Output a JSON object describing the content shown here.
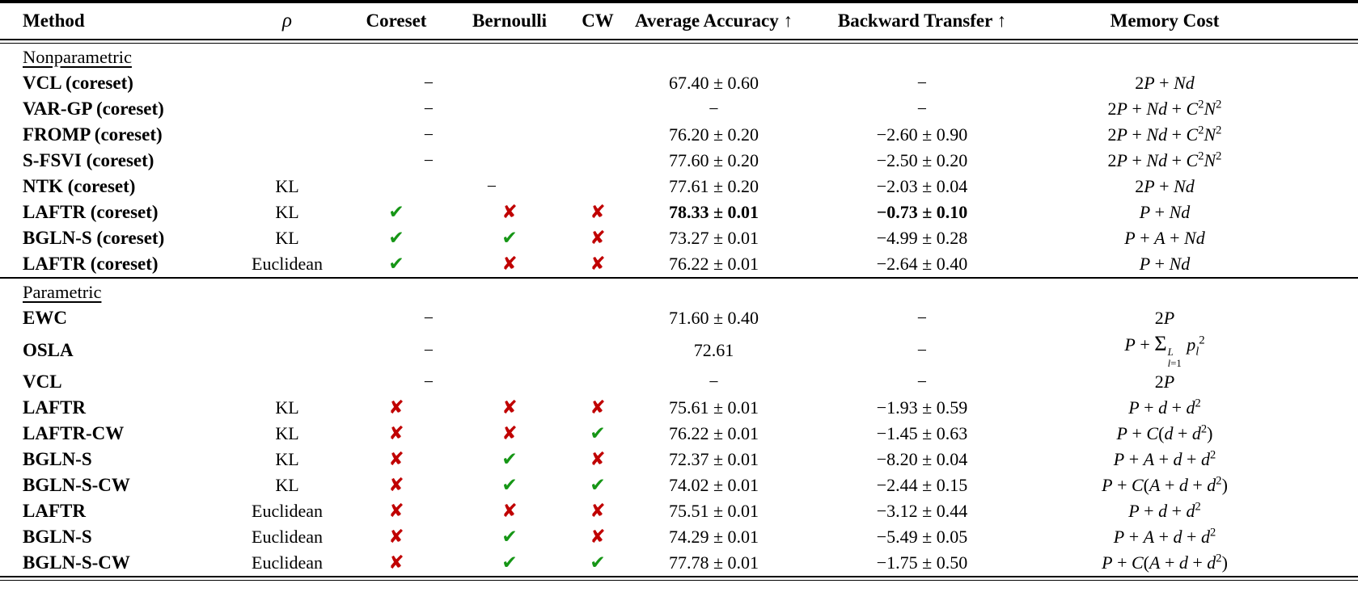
{
  "table": {
    "columns": [
      {
        "label": "Method"
      },
      {
        "label": "ρ"
      },
      {
        "label": "Coreset"
      },
      {
        "label": "Bernoulli"
      },
      {
        "label": "CW"
      },
      {
        "label": "Average Accuracy ↑"
      },
      {
        "label": "Backward Transfer ↑"
      },
      {
        "label": "Memory Cost"
      }
    ],
    "marks": {
      "check": "✔",
      "cross": "✘",
      "dash": "−"
    },
    "colors": {
      "check_green": "#169616",
      "cross_red": "#c00000",
      "text": "#000000",
      "background": "#ffffff"
    },
    "sections": [
      {
        "label": "Nonparametric",
        "rows": [
          {
            "method": "VCL (coreset)",
            "rho": "",
            "coreset": "dash",
            "bernoulli": "",
            "cw": "",
            "avg_accuracy": "67.40 ± 0.60",
            "backward_transfer": "−",
            "memory_cost": "2P + Nd",
            "bold": false
          },
          {
            "method": "VAR-GP (coreset)",
            "rho": "",
            "coreset": "dash",
            "bernoulli": "",
            "cw": "",
            "avg_accuracy": "−",
            "backward_transfer": "−",
            "memory_cost": "2P + Nd + C^{2}N^{2}",
            "bold": false
          },
          {
            "method": "FROMP (coreset)",
            "rho": "",
            "coreset": "dash",
            "bernoulli": "",
            "cw": "",
            "avg_accuracy": "76.20 ± 0.20",
            "backward_transfer": "−2.60 ± 0.90",
            "memory_cost": "2P + Nd + C^{2}N^{2}",
            "bold": false
          },
          {
            "method": "S-FSVI (coreset)",
            "rho": "",
            "coreset": "dash",
            "bernoulli": "",
            "cw": "",
            "avg_accuracy": "77.60 ± 0.20",
            "backward_transfer": "−2.50 ± 0.20",
            "memory_cost": "2P + Nd + C^{2}N^{2}",
            "bold": false
          },
          {
            "method": "NTK (coreset)",
            "rho": "KL",
            "coreset": "",
            "bernoulli": "dash",
            "cw": "",
            "avg_accuracy": "77.61 ± 0.20",
            "backward_transfer": "−2.03 ± 0.04",
            "memory_cost": "2P + Nd",
            "bold": false
          },
          {
            "method": "LAFTR (coreset)",
            "rho": "KL",
            "coreset": "check",
            "bernoulli": "cross",
            "cw": "cross",
            "avg_accuracy": "78.33 ± 0.01",
            "backward_transfer": "−0.73 ± 0.10",
            "memory_cost": "P + Nd",
            "bold": true
          },
          {
            "method": "BGLN-S (coreset)",
            "rho": "KL",
            "coreset": "check",
            "bernoulli": "check",
            "cw": "cross",
            "avg_accuracy": "73.27 ± 0.01",
            "backward_transfer": "−4.99 ± 0.28",
            "memory_cost": "P + A + Nd",
            "bold": false
          },
          {
            "method": "LAFTR (coreset)",
            "rho": "Euclidean",
            "coreset": "check",
            "bernoulli": "cross",
            "cw": "cross",
            "avg_accuracy": "76.22 ± 0.01",
            "backward_transfer": "−2.64 ± 0.40",
            "memory_cost": "P + Nd",
            "bold": false
          }
        ]
      },
      {
        "label": "Parametric",
        "rows": [
          {
            "method": "EWC",
            "rho": "",
            "coreset": "dash",
            "bernoulli": "",
            "cw": "",
            "avg_accuracy": "71.60 ± 0.40",
            "backward_transfer": "−",
            "memory_cost": "2P",
            "bold": false
          },
          {
            "method": "OSLA",
            "rho": "",
            "coreset": "dash",
            "bernoulli": "",
            "cw": "",
            "avg_accuracy": "72.61",
            "backward_transfer": "−",
            "memory_cost": "P + \\sum_{l=1}^{L} p_{l}^{2}",
            "bold": false
          },
          {
            "method": "VCL",
            "rho": "",
            "coreset": "dash",
            "bernoulli": "",
            "cw": "",
            "avg_accuracy": "−",
            "backward_transfer": "−",
            "memory_cost": "2P",
            "bold": false
          },
          {
            "method": "LAFTR",
            "rho": "KL",
            "coreset": "cross",
            "bernoulli": "cross",
            "cw": "cross",
            "avg_accuracy": "75.61 ± 0.01",
            "backward_transfer": "−1.93 ± 0.59",
            "memory_cost": "P + d + d^{2}",
            "bold": false
          },
          {
            "method": "LAFTR-CW",
            "rho": "KL",
            "coreset": "cross",
            "bernoulli": "cross",
            "cw": "check",
            "avg_accuracy": "76.22 ± 0.01",
            "backward_transfer": "−1.45 ± 0.63",
            "memory_cost": "P + C(d + d^{2})",
            "bold": false
          },
          {
            "method": "BGLN-S",
            "rho": "KL",
            "coreset": "cross",
            "bernoulli": "check",
            "cw": "cross",
            "avg_accuracy": "72.37 ± 0.01",
            "backward_transfer": "−8.20 ± 0.04",
            "memory_cost": "P + A + d + d^{2}",
            "bold": false
          },
          {
            "method": "BGLN-S-CW",
            "rho": "KL",
            "coreset": "cross",
            "bernoulli": "check",
            "cw": "check",
            "avg_accuracy": "74.02 ± 0.01",
            "backward_transfer": "−2.44 ± 0.15",
            "memory_cost": "P + C(A + d + d^{2})",
            "bold": false
          },
          {
            "method": "LAFTR",
            "rho": "Euclidean",
            "coreset": "cross",
            "bernoulli": "cross",
            "cw": "cross",
            "avg_accuracy": "75.51 ± 0.01",
            "backward_transfer": "−3.12 ± 0.44",
            "memory_cost": "P + d + d^{2}",
            "bold": false
          },
          {
            "method": "BGLN-S",
            "rho": "Euclidean",
            "coreset": "cross",
            "bernoulli": "check",
            "cw": "cross",
            "avg_accuracy": "74.29 ± 0.01",
            "backward_transfer": "−5.49 ± 0.05",
            "memory_cost": "P + A + d + d^{2}",
            "bold": false
          },
          {
            "method": "BGLN-S-CW",
            "rho": "Euclidean",
            "coreset": "cross",
            "bernoulli": "check",
            "cw": "check",
            "avg_accuracy": "77.78 ± 0.01",
            "backward_transfer": "−1.75 ± 0.50",
            "memory_cost": "P + C(A + d + d^{2})",
            "bold": false
          }
        ]
      }
    ]
  }
}
